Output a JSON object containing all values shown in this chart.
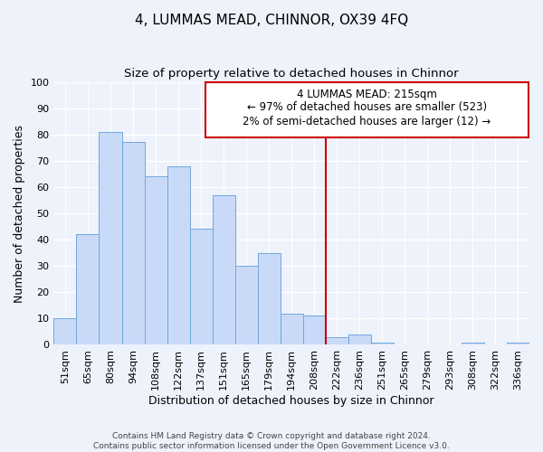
{
  "title": "4, LUMMAS MEAD, CHINNOR, OX39 4FQ",
  "subtitle": "Size of property relative to detached houses in Chinnor",
  "xlabel": "Distribution of detached houses by size in Chinnor",
  "ylabel": "Number of detached properties",
  "bar_labels": [
    "51sqm",
    "65sqm",
    "80sqm",
    "94sqm",
    "108sqm",
    "122sqm",
    "137sqm",
    "151sqm",
    "165sqm",
    "179sqm",
    "194sqm",
    "208sqm",
    "222sqm",
    "236sqm",
    "251sqm",
    "265sqm",
    "279sqm",
    "293sqm",
    "308sqm",
    "322sqm",
    "336sqm"
  ],
  "bar_values": [
    10,
    42,
    81,
    77,
    64,
    68,
    44,
    57,
    30,
    35,
    12,
    11,
    3,
    4,
    1,
    0,
    0,
    0,
    1,
    0,
    1
  ],
  "bar_color": "#c9daf8",
  "bar_edge_color": "#6fa8dc",
  "ylim": [
    0,
    100
  ],
  "yticks": [
    0,
    10,
    20,
    30,
    40,
    50,
    60,
    70,
    80,
    90,
    100
  ],
  "vline_x": 11.5,
  "vline_color": "#cc0000",
  "annotation_title": "4 LUMMAS MEAD: 215sqm",
  "annotation_line1": "← 97% of detached houses are smaller (523)",
  "annotation_line2": "2% of semi-detached houses are larger (12) →",
  "annotation_box_color": "#cc0000",
  "footer_line1": "Contains HM Land Registry data © Crown copyright and database right 2024.",
  "footer_line2": "Contains public sector information licensed under the Open Government Licence v3.0.",
  "title_fontsize": 11,
  "subtitle_fontsize": 9.5,
  "axis_label_fontsize": 9,
  "tick_fontsize": 8,
  "annotation_fontsize": 8.5,
  "footer_fontsize": 6.5,
  "background_color": "#eef2fb"
}
